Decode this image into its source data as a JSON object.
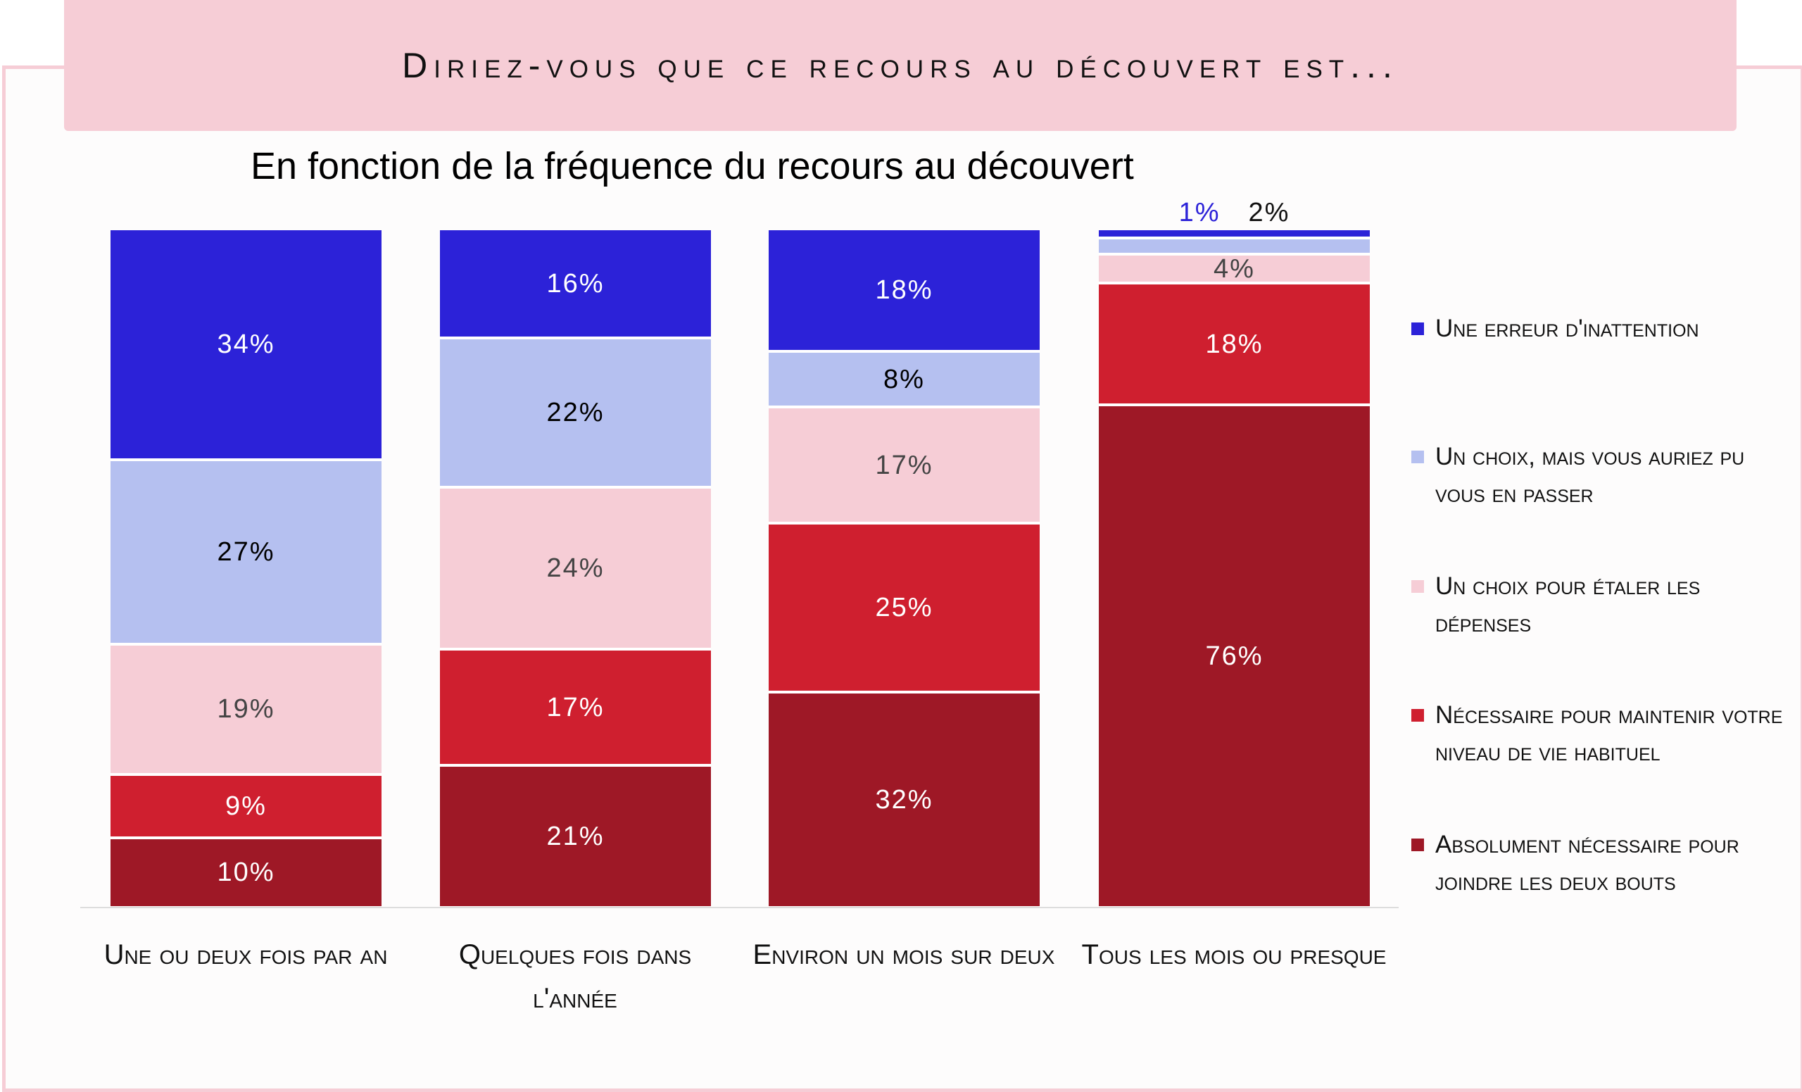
{
  "header": {
    "title": "Diriez-vous que ce recours au découvert est..."
  },
  "chart_data": {
    "type": "bar",
    "stacked": true,
    "title": "Diriez-vous que ce recours au découvert est...",
    "subtitle": "En fonction de la fréquence du recours au découvert",
    "categories": [
      "Une ou deux fois par an",
      "Quelques fois dans l'année",
      "Environ un mois sur deux",
      "Tous les mois ou presque"
    ],
    "series": [
      {
        "name": "Une erreur d'inattention",
        "color": "#2c22d8",
        "label_color": "#ffffff",
        "values": [
          34,
          16,
          18,
          1
        ]
      },
      {
        "name": "Un choix, mais vous auriez pu vous en passer",
        "color": "#b5c0f0",
        "label_color": "#000000",
        "values": [
          27,
          22,
          8,
          2
        ]
      },
      {
        "name": "Un choix pour étaler les dépenses",
        "color": "#f6cdd6",
        "label_color": "#444444",
        "values": [
          19,
          24,
          17,
          4
        ]
      },
      {
        "name": "Nécessaire pour maintenir votre niveau de vie habituel",
        "color": "#cf1f2f",
        "label_color": "#ffffff",
        "values": [
          9,
          17,
          25,
          18
        ]
      },
      {
        "name": "Absolument nécessaire pour joindre les deux bouts",
        "color": "#9e1826",
        "label_color": "#ffffff",
        "values": [
          10,
          21,
          32,
          76
        ]
      }
    ],
    "value_suffix": "%",
    "legend_position": "right",
    "grid": false
  }
}
